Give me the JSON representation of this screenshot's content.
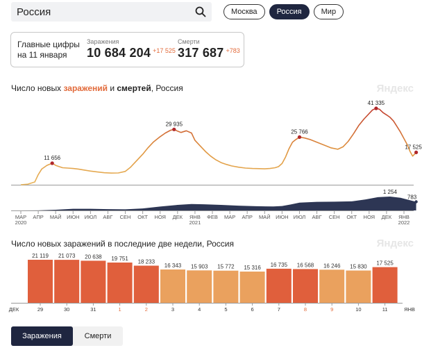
{
  "search": {
    "value": "Россия"
  },
  "regions": {
    "items": [
      "Москва",
      "Россия",
      "Мир"
    ],
    "active": "Россия"
  },
  "summary": {
    "label_line1": "Главные цифры",
    "label_line2": "на 11 января",
    "cases_title": "Заражения",
    "cases_value": "10 684 204",
    "cases_delta": "+17 525",
    "deaths_title": "Смерти",
    "deaths_value": "317 687",
    "deaths_delta": "+783"
  },
  "brand": "Яндекс",
  "main_chart_title": {
    "part1": "Число новых ",
    "cases_word": "заражений",
    "part2": " и ",
    "deaths_word": "смертей",
    "part3": ", Россия"
  },
  "bars_chart_title": "Число новых заражений в последние две недели, Россия",
  "tabs": {
    "items": [
      "Заражения",
      "Смерти"
    ],
    "active": "Заражения"
  },
  "colors": {
    "accent": "#e26a3a",
    "dark": "#1f2640",
    "line_low": "#e8b55c",
    "line_high": "#c0392b",
    "deaths_area": "#2d3654",
    "bar_weekday": "#e05f3c",
    "bar_weekend": "#eaa15e"
  },
  "chart_data": [
    {
      "type": "line",
      "title": "Число новых заражений и смертей, Россия",
      "x_ticks": [
        "МАР\n2020",
        "АПР",
        "МАЙ",
        "ИЮН",
        "ИЮЛ",
        "АВГ",
        "СЕН",
        "ОКТ",
        "НОЯ",
        "ДЕК",
        "ЯНВ\n2021",
        "ФЕВ",
        "МАР",
        "АПР",
        "МАЙ",
        "ИЮН",
        "ИЮЛ",
        "АВГ",
        "СЕН",
        "ОКТ",
        "НОЯ",
        "ДЕК",
        "ЯНВ\n2022"
      ],
      "series": [
        {
          "name": "заражений",
          "x_month_index": [
            0,
            0.4,
            0.8,
            1.0,
            1.2,
            1.5,
            1.8,
            2.0,
            2.2,
            2.4,
            2.7,
            3.0,
            3.3,
            3.6,
            4.0,
            4.4,
            4.8,
            5.2,
            5.6,
            6.0,
            6.3,
            6.6,
            7.0,
            7.3,
            7.6,
            8.0,
            8.3,
            8.6,
            8.8,
            9.0,
            9.2,
            9.5,
            9.8,
            10.0,
            10.3,
            10.6,
            10.9,
            11.2,
            11.5,
            11.8,
            12.1,
            12.5,
            12.9,
            13.3,
            13.7,
            14.0,
            14.3,
            14.6,
            14.8,
            15.0,
            15.2,
            15.4,
            15.6,
            15.8,
            16.0,
            16.3,
            16.6,
            17.0,
            17.4,
            17.8,
            18.2,
            18.5,
            18.8,
            19.1,
            19.4,
            19.7,
            20.0,
            20.2,
            20.4,
            20.6,
            20.8,
            21.0,
            21.2,
            21.4,
            21.6,
            21.8,
            22.0,
            22.2,
            22.35,
            22.5,
            22.7
          ],
          "values": [
            0,
            300,
            1500,
            5500,
            8500,
            10500,
            11656,
            10500,
            9800,
            9200,
            9000,
            8800,
            8500,
            8000,
            7400,
            6900,
            6500,
            6300,
            6400,
            7200,
            9500,
            12500,
            16500,
            20000,
            23000,
            26000,
            28000,
            29500,
            29935,
            29000,
            28300,
            29200,
            28000,
            24000,
            21000,
            18000,
            15500,
            13500,
            12000,
            11000,
            10200,
            9500,
            9000,
            8800,
            8700,
            8600,
            8800,
            9200,
            9800,
            11500,
            15000,
            19500,
            23000,
            24500,
            25766,
            25300,
            24500,
            23000,
            21500,
            20000,
            19200,
            20500,
            23500,
            27500,
            32000,
            35500,
            38500,
            40500,
            41335,
            40800,
            39000,
            37800,
            36500,
            34500,
            31500,
            28500,
            25000,
            21500,
            18000,
            15500,
            17525
          ]
        },
        {
          "name": "смертей",
          "x_month_index": [
            0,
            1.0,
            2.0,
            3.0,
            4.0,
            5.0,
            6.0,
            7.0,
            8.0,
            9.0,
            9.8,
            10.5,
            11.5,
            12.5,
            13.5,
            14.5,
            15.0,
            15.5,
            16.0,
            17.0,
            18.0,
            19.0,
            19.8,
            20.5,
            21.2,
            21.8,
            22.4,
            22.7
          ],
          "values": [
            0,
            5,
            60,
            150,
            150,
            120,
            100,
            180,
            350,
            500,
            580,
            560,
            500,
            430,
            380,
            360,
            400,
            540,
            700,
            780,
            790,
            820,
            1000,
            1200,
            1254,
            1150,
            900,
            783
          ]
        }
      ],
      "annotations": [
        "11 656",
        "29 935",
        "25 766",
        "41 335",
        "17 525",
        "1 254",
        "783"
      ]
    },
    {
      "type": "bar",
      "title": "Число новых заражений в последние две недели, Россия",
      "categories": [
        "29",
        "30",
        "31",
        "1",
        "2",
        "3",
        "4",
        "5",
        "6",
        "7",
        "8",
        "9",
        "10",
        "11"
      ],
      "values": [
        21119,
        21073,
        20638,
        19751,
        18233,
        16343,
        15903,
        15772,
        15316,
        16735,
        16568,
        16246,
        15830,
        17525
      ],
      "value_labels": [
        "21 119",
        "21 073",
        "20 638",
        "19 751",
        "18 233",
        "16 343",
        "15 903",
        "15 772",
        "15 316",
        "16 735",
        "16 568",
        "16 246",
        "15 830",
        "17 525"
      ],
      "highlight": [
        false,
        false,
        false,
        true,
        true,
        false,
        false,
        false,
        false,
        false,
        true,
        true,
        false,
        false
      ],
      "x_start_label": "ДЕК",
      "x_end_label": "ЯНВ",
      "ylim": [
        0,
        22000
      ]
    }
  ]
}
